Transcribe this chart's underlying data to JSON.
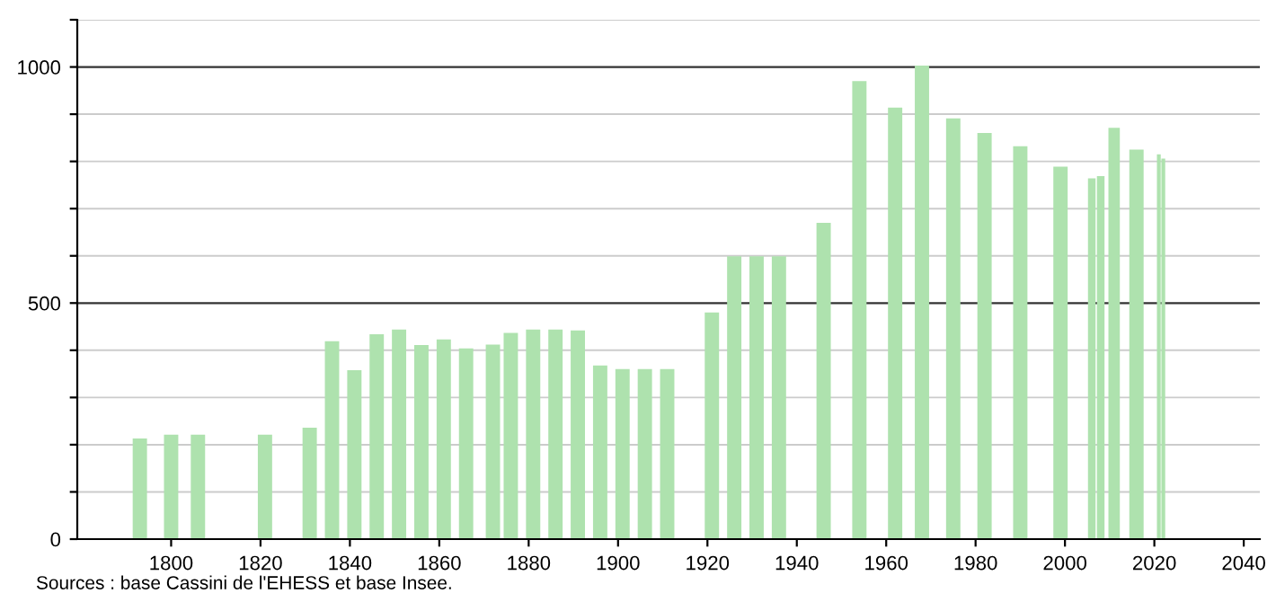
{
  "chart_data": {
    "type": "bar",
    "color": "#aee2ae",
    "x": [
      1793,
      1800,
      1806,
      1821,
      1831,
      1836,
      1841,
      1846,
      1851,
      1856,
      1861,
      1866,
      1872,
      1876,
      1881,
      1886,
      1891,
      1896,
      1901,
      1906,
      1911,
      1921,
      1926,
      1931,
      1936,
      1946,
      1954,
      1962,
      1968,
      1975,
      1982,
      1990,
      1999,
      2006,
      2008,
      2011,
      2016,
      2021,
      2022
    ],
    "values": [
      213,
      221,
      221,
      221,
      236,
      419,
      358,
      434,
      444,
      411,
      423,
      404,
      412,
      437,
      444,
      444,
      442,
      368,
      360,
      360,
      360,
      480,
      599,
      599,
      599,
      670,
      970,
      914,
      1003,
      891,
      860,
      832,
      789,
      764,
      769,
      871,
      825,
      815,
      806
    ],
    "xlim": [
      1779,
      2043.6
    ],
    "ylim": [
      0,
      1100
    ],
    "xticks": [
      1800,
      1820,
      1840,
      1860,
      1880,
      1900,
      1920,
      1940,
      1960,
      1980,
      2000,
      2020,
      2040
    ],
    "yticks": [
      0,
      {
        "value": 100,
        "label": null
      },
      {
        "value": 200,
        "label": null
      },
      {
        "value": 300,
        "label": null
      },
      {
        "value": 400,
        "label": null
      },
      500,
      {
        "value": 600,
        "label": null
      },
      {
        "value": 700,
        "label": null
      },
      {
        "value": 800,
        "label": null
      },
      {
        "value": 900,
        "label": null
      },
      1000,
      {
        "value": 1100,
        "label": null
      }
    ],
    "grid": "y",
    "annotations": [
      "Sources : base Cassini de l'EHESS et base Insee."
    ]
  }
}
